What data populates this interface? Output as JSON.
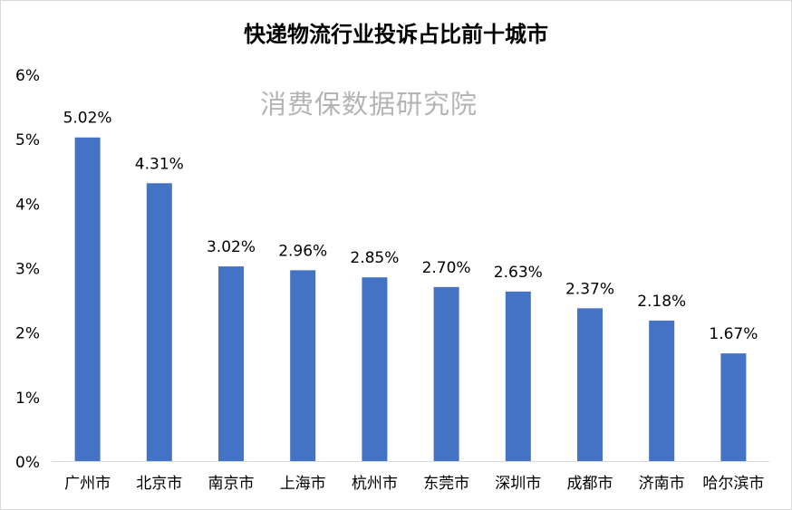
{
  "chart_data": {
    "type": "bar",
    "title": "快递物流行业投诉占比前十城市",
    "watermark": "消费保数据研究院",
    "categories": [
      "广州市",
      "北京市",
      "南京市",
      "上海市",
      "杭州市",
      "东莞市",
      "深圳市",
      "成都市",
      "济南市",
      "哈尔滨市"
    ],
    "values": [
      5.02,
      4.31,
      3.02,
      2.96,
      2.85,
      2.7,
      2.63,
      2.37,
      2.18,
      1.67
    ],
    "data_labels": [
      "5.02%",
      "4.31%",
      "3.02%",
      "2.96%",
      "2.85%",
      "2.70%",
      "2.63%",
      "2.37%",
      "2.18%",
      "1.67%"
    ],
    "yticks": [
      0,
      1,
      2,
      3,
      4,
      5,
      6
    ],
    "ytick_labels": [
      "0%",
      "1%",
      "2%",
      "3%",
      "4%",
      "5%",
      "6%"
    ],
    "ylim": [
      0,
      6
    ],
    "xlabel": "",
    "ylabel": "",
    "grid": false,
    "legend": "none",
    "bar_color": "#4472c4"
  }
}
